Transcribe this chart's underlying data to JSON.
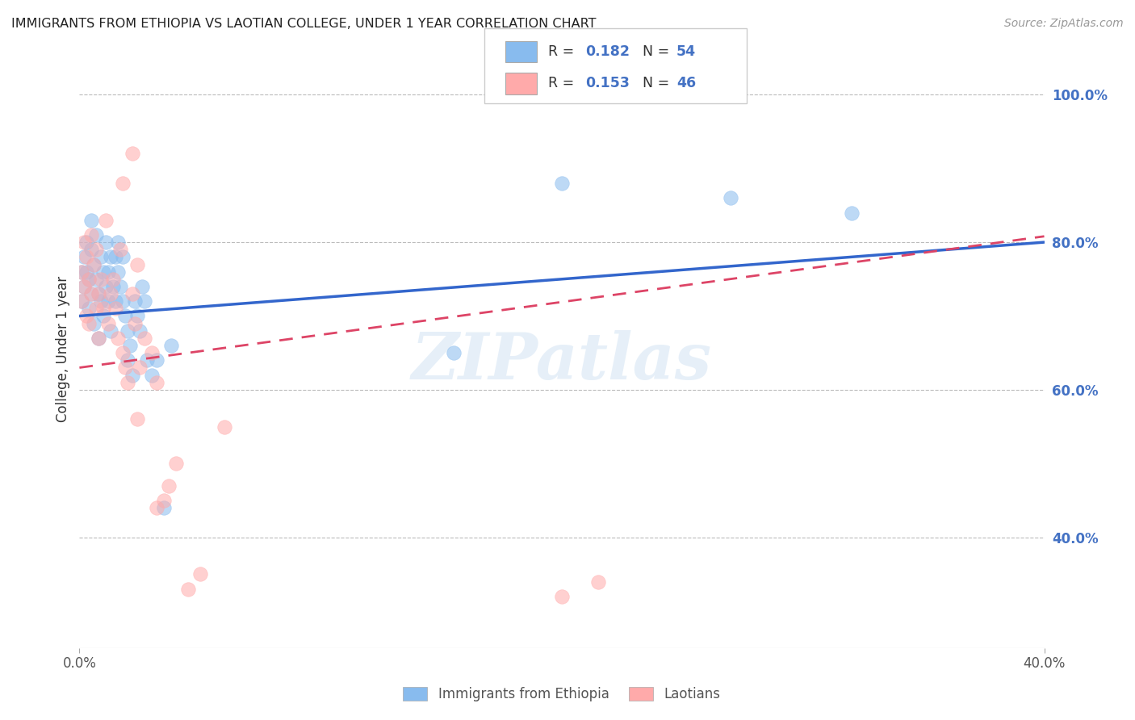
{
  "title": "IMMIGRANTS FROM ETHIOPIA VS LAOTIAN COLLEGE, UNDER 1 YEAR CORRELATION CHART",
  "source": "Source: ZipAtlas.com",
  "ylabel": "College, Under 1 year",
  "xmin": 0.0,
  "xmax": 0.4,
  "ymin": 0.25,
  "ymax": 1.06,
  "right_yticks": [
    0.4,
    0.6,
    0.8,
    1.0
  ],
  "right_yticklabels": [
    "40.0%",
    "60.0%",
    "80.0%",
    "100.0%"
  ],
  "color_blue": "#88bbee",
  "color_pink": "#ffaaaa",
  "color_blue_line": "#3366cc",
  "color_pink_line": "#dd4466",
  "watermark": "ZIPatlas",
  "legend_label1": "Immigrants from Ethiopia",
  "legend_label2": "Laotians",
  "blue_line_x0": 0.0,
  "blue_line_x1": 0.4,
  "blue_line_y0": 0.7,
  "blue_line_y1": 0.8,
  "pink_line_x0": 0.0,
  "pink_line_x1": 0.4,
  "pink_line_y0": 0.63,
  "pink_line_y1": 0.808,
  "blue_scatter_x": [
    0.001,
    0.001,
    0.002,
    0.002,
    0.003,
    0.003,
    0.004,
    0.004,
    0.005,
    0.005,
    0.005,
    0.006,
    0.006,
    0.007,
    0.007,
    0.008,
    0.008,
    0.009,
    0.009,
    0.01,
    0.01,
    0.011,
    0.011,
    0.012,
    0.012,
    0.013,
    0.013,
    0.014,
    0.015,
    0.015,
    0.016,
    0.016,
    0.017,
    0.018,
    0.018,
    0.019,
    0.02,
    0.02,
    0.021,
    0.022,
    0.023,
    0.024,
    0.025,
    0.026,
    0.027,
    0.028,
    0.03,
    0.032,
    0.035,
    0.038,
    0.155,
    0.2,
    0.27,
    0.32
  ],
  "blue_scatter_y": [
    0.76,
    0.72,
    0.78,
    0.74,
    0.8,
    0.76,
    0.75,
    0.71,
    0.79,
    0.73,
    0.83,
    0.77,
    0.69,
    0.81,
    0.75,
    0.73,
    0.67,
    0.78,
    0.72,
    0.76,
    0.7,
    0.74,
    0.8,
    0.72,
    0.76,
    0.78,
    0.68,
    0.74,
    0.78,
    0.72,
    0.8,
    0.76,
    0.74,
    0.78,
    0.72,
    0.7,
    0.68,
    0.64,
    0.66,
    0.62,
    0.72,
    0.7,
    0.68,
    0.74,
    0.72,
    0.64,
    0.62,
    0.64,
    0.44,
    0.66,
    0.65,
    0.88,
    0.86,
    0.84
  ],
  "pink_scatter_x": [
    0.001,
    0.001,
    0.002,
    0.002,
    0.003,
    0.003,
    0.004,
    0.004,
    0.005,
    0.005,
    0.006,
    0.007,
    0.007,
    0.008,
    0.008,
    0.009,
    0.01,
    0.011,
    0.012,
    0.013,
    0.014,
    0.015,
    0.016,
    0.017,
    0.018,
    0.019,
    0.02,
    0.022,
    0.023,
    0.024,
    0.025,
    0.027,
    0.03,
    0.032,
    0.035,
    0.037,
    0.04,
    0.045,
    0.05,
    0.06,
    0.018,
    0.022,
    0.024,
    0.032,
    0.2,
    0.215
  ],
  "pink_scatter_y": [
    0.76,
    0.72,
    0.8,
    0.74,
    0.78,
    0.7,
    0.75,
    0.69,
    0.81,
    0.73,
    0.77,
    0.79,
    0.71,
    0.73,
    0.67,
    0.75,
    0.71,
    0.83,
    0.69,
    0.73,
    0.75,
    0.71,
    0.67,
    0.79,
    0.65,
    0.63,
    0.61,
    0.73,
    0.69,
    0.77,
    0.63,
    0.67,
    0.65,
    0.61,
    0.45,
    0.47,
    0.5,
    0.33,
    0.35,
    0.55,
    0.88,
    0.92,
    0.56,
    0.44,
    0.32,
    0.34
  ]
}
